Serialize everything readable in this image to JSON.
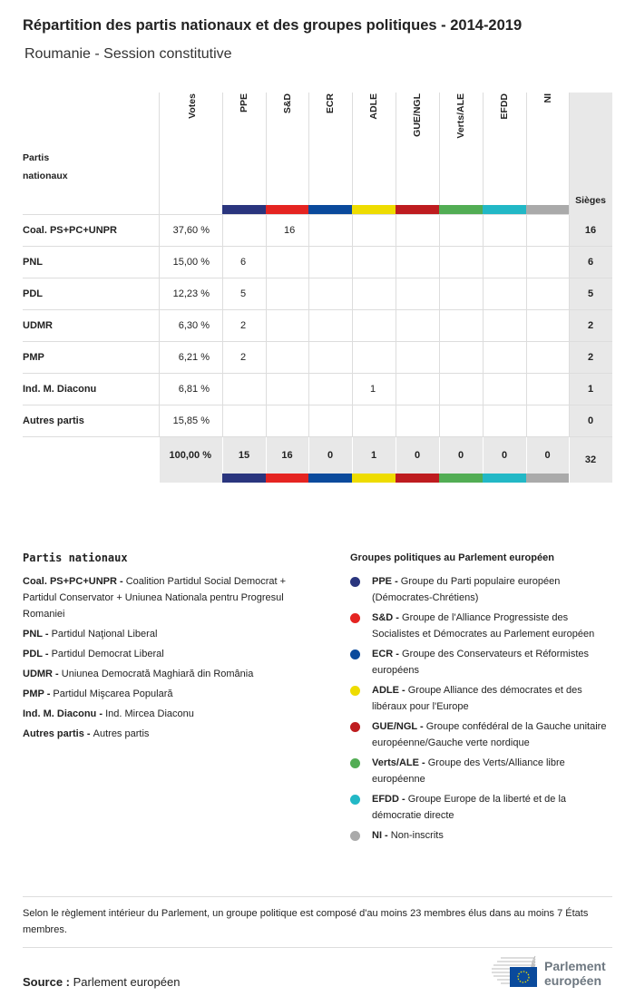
{
  "title": "Répartition des partis nationaux et des groupes politiques - 2014-2019",
  "subtitle": "Roumanie - Session constitutive",
  "table": {
    "party_header": "Partis nationaux",
    "votes_header": "Votes",
    "seats_header": "Sièges",
    "groups": [
      {
        "label": "PPE",
        "color": "#2a357e"
      },
      {
        "label": "S&D",
        "color": "#e52421"
      },
      {
        "label": "ECR",
        "color": "#0a4a9c"
      },
      {
        "label": "ADLE",
        "color": "#eedc00"
      },
      {
        "label": "GUE/NGL",
        "color": "#be1c1f"
      },
      {
        "label": "Verts/ALE",
        "color": "#52ad54"
      },
      {
        "label": "EFDD",
        "color": "#22b8c6"
      },
      {
        "label": "NI",
        "color": "#aaaaaa"
      }
    ],
    "rows": [
      {
        "party": "Coal. PS+PC+UNPR",
        "votes": "37,60 %",
        "seats_by_group": [
          "",
          "16",
          "",
          "",
          "",
          "",
          "",
          ""
        ],
        "total": "16"
      },
      {
        "party": "PNL",
        "votes": "15,00 %",
        "seats_by_group": [
          "6",
          "",
          "",
          "",
          "",
          "",
          "",
          ""
        ],
        "total": "6"
      },
      {
        "party": "PDL",
        "votes": "12,23 %",
        "seats_by_group": [
          "5",
          "",
          "",
          "",
          "",
          "",
          "",
          ""
        ],
        "total": "5"
      },
      {
        "party": "UDMR",
        "votes": "6,30 %",
        "seats_by_group": [
          "2",
          "",
          "",
          "",
          "",
          "",
          "",
          ""
        ],
        "total": "2"
      },
      {
        "party": "PMP",
        "votes": "6,21 %",
        "seats_by_group": [
          "2",
          "",
          "",
          "",
          "",
          "",
          "",
          ""
        ],
        "total": "2"
      },
      {
        "party": "Ind. M. Diaconu",
        "votes": "6,81 %",
        "seats_by_group": [
          "",
          "",
          "",
          "1",
          "",
          "",
          "",
          ""
        ],
        "total": "1"
      },
      {
        "party": "Autres partis",
        "votes": "15,85 %",
        "seats_by_group": [
          "",
          "",
          "",
          "",
          "",
          "",
          "",
          ""
        ],
        "total": "0"
      }
    ],
    "totals": {
      "votes": "100,00 %",
      "seats_by_group": [
        "15",
        "16",
        "0",
        "1",
        "0",
        "0",
        "0",
        "0"
      ],
      "total": "32"
    }
  },
  "legend_parties": {
    "heading": "Partis nationaux",
    "items": [
      {
        "abbr": "Coal. PS+PC+UNPR",
        "name": "Coalition Partidul Social Democrat + Partidul Conservator + Uniunea Nationala pentru Progresul Romaniei"
      },
      {
        "abbr": "PNL",
        "name": "Partidul Naţional Liberal"
      },
      {
        "abbr": "PDL",
        "name": "Partidul Democrat Liberal"
      },
      {
        "abbr": "UDMR",
        "name": "Uniunea Democrată Maghiară din România"
      },
      {
        "abbr": "PMP",
        "name": "Partidul Mişcarea Populară"
      },
      {
        "abbr": "Ind. M. Diaconu",
        "name": "Ind. Mircea Diaconu"
      },
      {
        "abbr": "Autres partis",
        "name": "Autres partis"
      }
    ]
  },
  "legend_groups": {
    "heading": "Groupes politiques au Parlement européen",
    "items": [
      {
        "abbr": "PPE",
        "name": "Groupe du Parti populaire européen (Démocrates-Chrétiens)",
        "color": "#2a357e"
      },
      {
        "abbr": "S&D",
        "name": "Groupe de l'Alliance Progressiste des Socialistes et Démocrates au Parlement européen",
        "color": "#e52421"
      },
      {
        "abbr": "ECR",
        "name": "Groupe des Conservateurs et Réformistes européens",
        "color": "#0a4a9c"
      },
      {
        "abbr": "ADLE",
        "name": "Groupe Alliance des démocrates et des libéraux pour l'Europe",
        "color": "#eedc00"
      },
      {
        "abbr": "GUE/NGL",
        "name": "Groupe confédéral de la Gauche unitaire européenne/Gauche verte nordique",
        "color": "#be1c1f"
      },
      {
        "abbr": "Verts/ALE",
        "name": "Groupe des Verts/Alliance libre européenne",
        "color": "#52ad54"
      },
      {
        "abbr": "EFDD",
        "name": "Groupe Europe de la liberté et de la démocratie directe",
        "color": "#22b8c6"
      },
      {
        "abbr": "NI",
        "name": "Non-inscrits",
        "color": "#aaaaaa"
      }
    ]
  },
  "note": "Selon le règlement intérieur du Parlement, un groupe politique est composé d'au moins 23 membres élus dans au moins 7 États membres.",
  "source": {
    "label": "Source :",
    "value": "Parlement européen"
  },
  "logo": {
    "line1": "Parlement",
    "line2": "européen"
  }
}
